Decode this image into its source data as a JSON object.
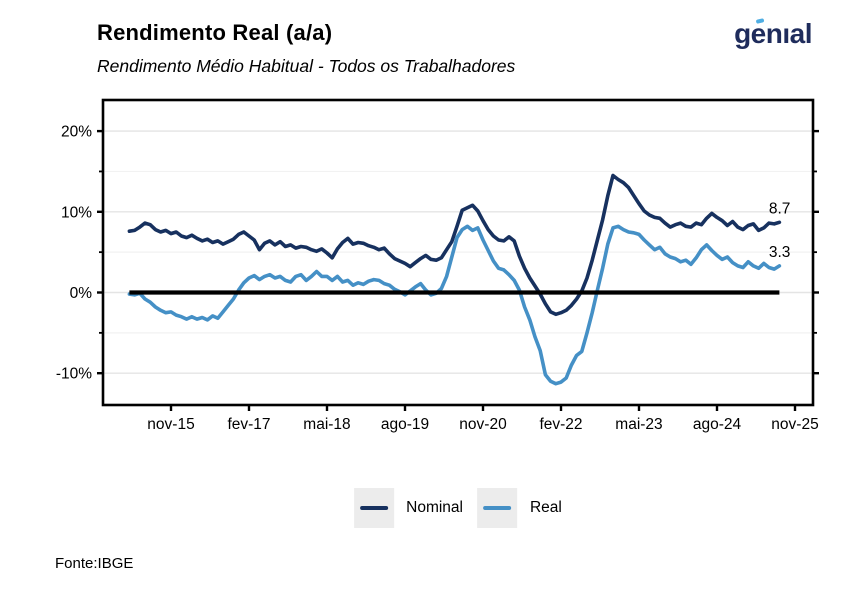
{
  "header": {
    "title": "Rendimento Real (a/a)",
    "subtitle": "Rendimento Médio Habitual - Todos os Trabalhadores",
    "logo_text": "genıal"
  },
  "footer": {
    "source": "Fonte:IBGE"
  },
  "legend": [
    {
      "label": "Nominal",
      "color": "#17315F"
    },
    {
      "label": "Real",
      "color": "#4590C6"
    }
  ],
  "colors": {
    "nominal": "#17315F",
    "real": "#4590C6",
    "zero_line": "#000000",
    "frame": "#000000",
    "grid_major": "#E4E4E4",
    "grid_minor": "#F2F2F2",
    "logo_navy": "#1F2C5C",
    "logo_accent": "#4FAEE3",
    "legend_key_bg": "#ECECEC"
  },
  "chart_data": {
    "type": "line",
    "title": "Rendimento Real (a/a)",
    "subtitle": "Rendimento Médio Habitual - Todos os Trabalhadores",
    "xlabel": "",
    "ylabel": "",
    "x": {
      "start": "2015-03",
      "end": "2025-08",
      "freq": "monthly"
    },
    "x_tick_labels": [
      "nov-15",
      "fev-17",
      "mai-18",
      "ago-19",
      "nov-20",
      "fev-22",
      "mai-23",
      "ago-24",
      "nov-25"
    ],
    "x_tick_month_index": [
      8,
      23,
      38,
      53,
      68,
      83,
      98,
      113,
      128
    ],
    "y_axis": {
      "tick_labels": [
        "20%",
        "10%",
        "0%",
        "-10%"
      ],
      "major_ticks": [
        20,
        10,
        0,
        -10
      ],
      "minor_ticks": [
        15,
        5,
        -5
      ],
      "ylim": [
        -13.9,
        23.9
      ],
      "unit": "%"
    },
    "grid": "horizontal-only",
    "legend_position": "bottom",
    "zero_line": true,
    "series": [
      {
        "name": "Nominal",
        "color": "#17315F",
        "end_label": "8.7",
        "values": [
          7.6,
          7.7,
          8.1,
          8.6,
          8.4,
          7.8,
          7.5,
          7.7,
          7.3,
          7.5,
          7.0,
          6.8,
          7.1,
          6.7,
          6.4,
          6.6,
          6.2,
          6.4,
          6.0,
          6.3,
          6.6,
          7.2,
          7.5,
          7.0,
          6.5,
          5.3,
          6.1,
          6.4,
          5.9,
          6.3,
          5.7,
          5.9,
          5.5,
          5.7,
          5.6,
          5.3,
          5.1,
          5.4,
          4.9,
          4.3,
          5.4,
          6.2,
          6.7,
          6.0,
          6.2,
          6.1,
          5.8,
          5.6,
          5.3,
          5.5,
          4.8,
          4.2,
          3.9,
          3.6,
          3.2,
          3.7,
          4.2,
          4.6,
          4.1,
          4.0,
          4.3,
          5.3,
          6.3,
          8.2,
          10.2,
          10.5,
          10.8,
          10.1,
          8.9,
          7.8,
          7.0,
          6.5,
          6.4,
          6.9,
          6.4,
          4.5,
          3.0,
          1.8,
          0.8,
          -0.2,
          -1.4,
          -2.4,
          -2.7,
          -2.5,
          -2.2,
          -1.6,
          -0.8,
          0.2,
          1.8,
          4.0,
          6.5,
          9.0,
          12.0,
          14.5,
          14.0,
          13.6,
          13.0,
          12.0,
          11.0,
          10.1,
          9.6,
          9.3,
          9.2,
          8.6,
          8.1,
          8.4,
          8.6,
          8.2,
          8.1,
          8.6,
          8.4,
          9.2,
          9.8,
          9.3,
          8.9,
          8.3,
          8.8,
          8.1,
          7.8,
          8.3,
          8.5,
          7.7,
          8.0,
          8.6,
          8.5,
          8.7
        ]
      },
      {
        "name": "Real",
        "color": "#4590C6",
        "end_label": "3.3",
        "values": [
          -0.2,
          -0.3,
          -0.1,
          -0.8,
          -1.2,
          -1.8,
          -2.2,
          -2.5,
          -2.4,
          -2.8,
          -3.0,
          -3.3,
          -3.0,
          -3.3,
          -3.1,
          -3.4,
          -2.9,
          -3.2,
          -2.4,
          -1.6,
          -0.8,
          0.3,
          1.2,
          1.8,
          2.1,
          1.6,
          2.0,
          2.2,
          1.8,
          2.0,
          1.5,
          1.3,
          2.0,
          2.2,
          1.5,
          2.0,
          2.6,
          2.0,
          2.0,
          1.5,
          2.0,
          1.3,
          1.5,
          0.9,
          1.2,
          1.0,
          1.4,
          1.6,
          1.5,
          1.1,
          0.9,
          0.4,
          0.1,
          -0.3,
          0.2,
          0.7,
          1.1,
          0.3,
          -0.3,
          -0.1,
          0.5,
          2.0,
          4.4,
          6.8,
          7.8,
          8.2,
          7.7,
          8.0,
          6.5,
          5.2,
          3.9,
          3.0,
          2.8,
          2.2,
          1.5,
          0.3,
          -1.8,
          -3.4,
          -5.5,
          -7.2,
          -10.2,
          -11.0,
          -11.3,
          -11.1,
          -10.6,
          -9.0,
          -7.8,
          -7.3,
          -5.0,
          -2.5,
          0.3,
          3.0,
          6.0,
          8.0,
          8.2,
          7.8,
          7.5,
          7.4,
          7.2,
          6.5,
          5.9,
          5.3,
          5.6,
          4.8,
          4.4,
          4.2,
          3.8,
          4.0,
          3.5,
          4.3,
          5.3,
          5.9,
          5.2,
          4.6,
          4.1,
          4.4,
          3.7,
          3.3,
          3.1,
          3.8,
          3.3,
          3.0,
          3.6,
          3.1,
          2.9,
          3.3
        ]
      }
    ]
  }
}
